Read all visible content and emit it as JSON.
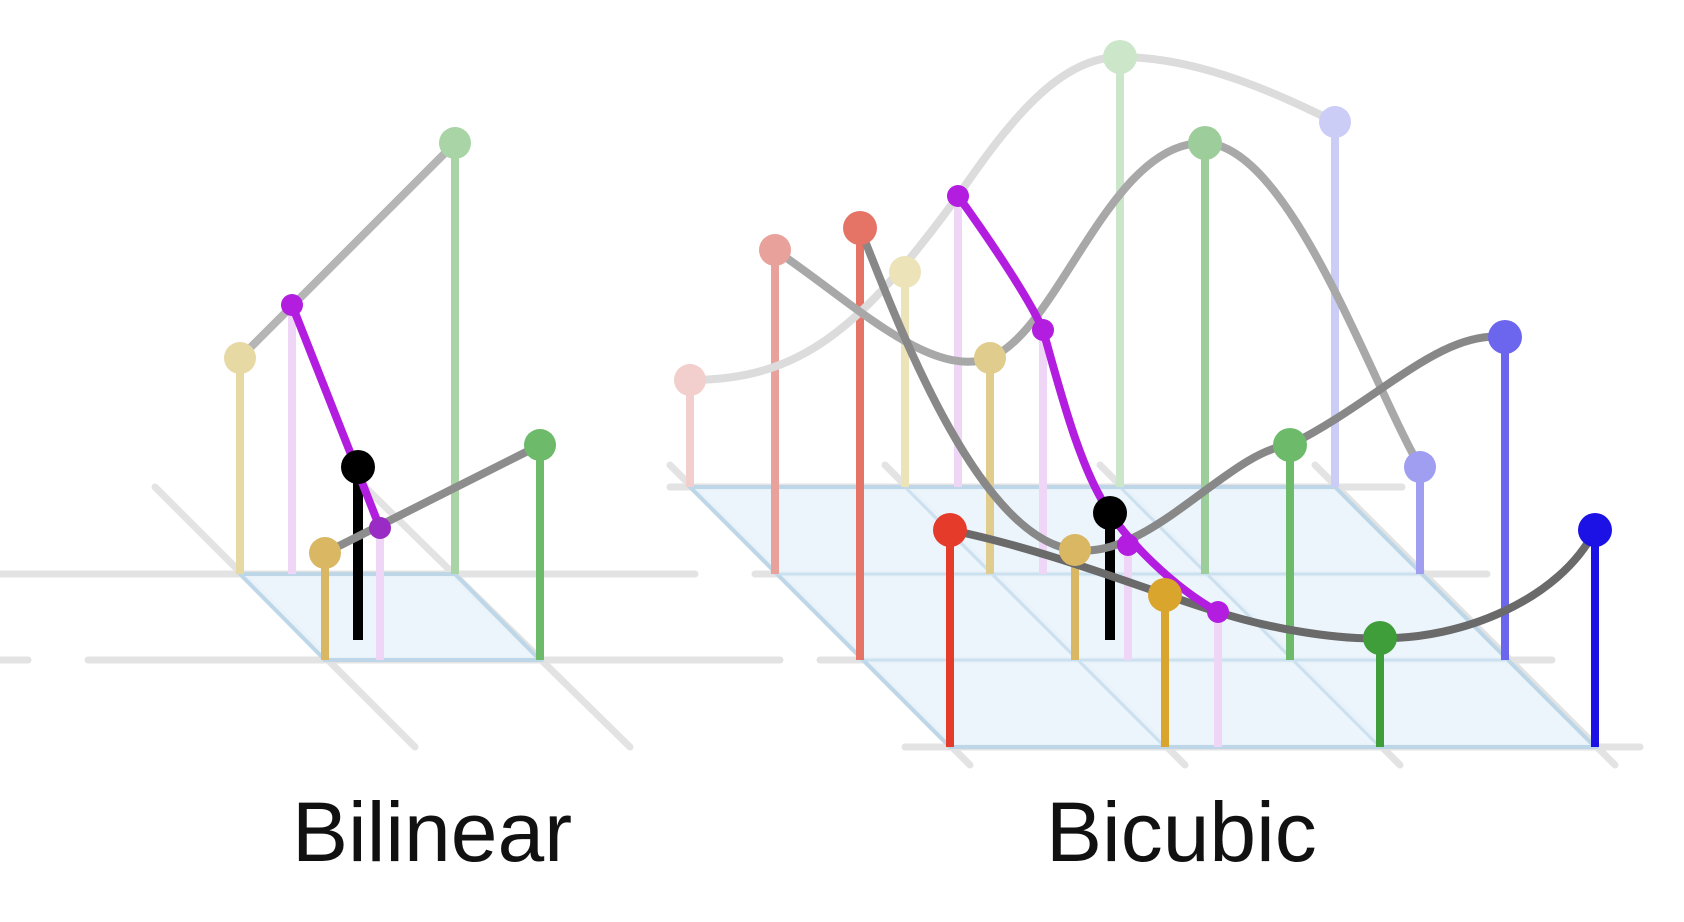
{
  "labels": {
    "bilinear": "Bilinear",
    "bicubic": "Bicubic"
  },
  "colors": {
    "grid": "#dcdcdc",
    "cell_fill": "#eaf4fc",
    "cell_edge": "#b9d6ea",
    "interp_curve": "#808080",
    "result_curve": "#b21de0",
    "result_point": "#000000",
    "red": "#e53b2a",
    "yellow": "#d6a83c",
    "green": "#3f9e3a",
    "blue": "#1c12e6",
    "background": "#ffffff"
  }
}
